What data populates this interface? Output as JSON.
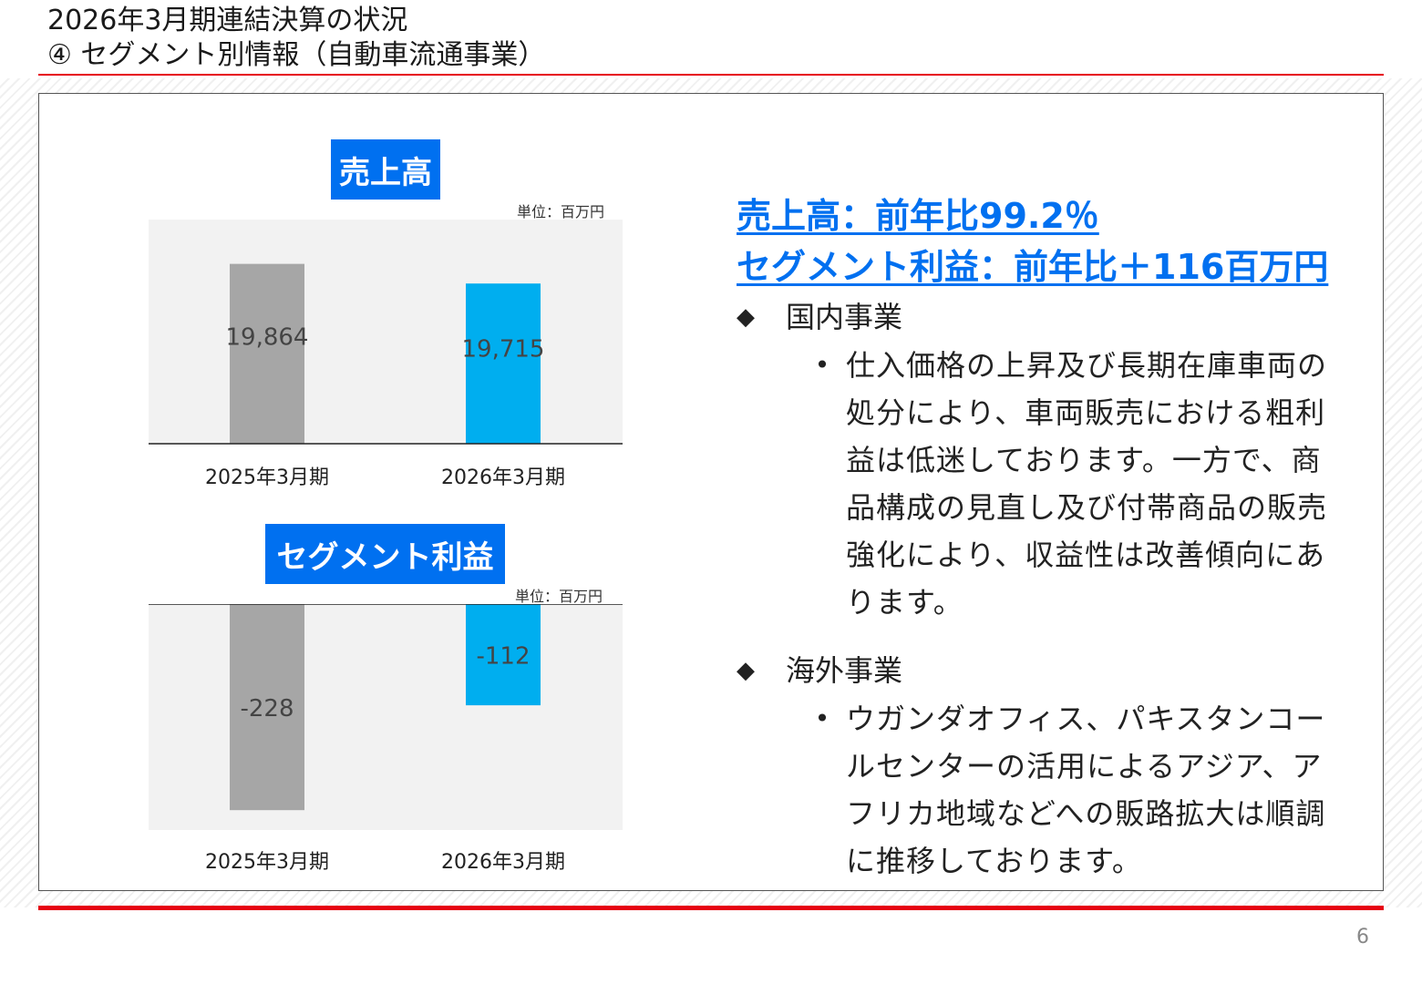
{
  "header": {
    "title": "2026年3月期連結決算の状況",
    "subtitle": "④ セグメント別情報（自動車流通事業）"
  },
  "tags": {
    "sales": "売上高",
    "profit": "セグメント利益"
  },
  "units": {
    "sales": "単位：百万円",
    "profit": "単位：百万円"
  },
  "chart_data": [
    {
      "type": "bar",
      "title": "売上高",
      "unit": "単位：百万円",
      "categories": [
        "2025年3月期",
        "2026年3月期"
      ],
      "values": [
        19864,
        19715
      ],
      "value_labels": [
        "19,864",
        "19,715"
      ],
      "colors": [
        "#a6a6a6",
        "#00aeef"
      ],
      "ylim": [
        18500,
        20200
      ],
      "grid": false
    },
    {
      "type": "bar",
      "title": "セグメント利益",
      "unit": "単位：百万円",
      "categories": [
        "2025年3月期",
        "2026年3月期"
      ],
      "values": [
        -228,
        -112
      ],
      "value_labels": [
        "-228",
        "-112"
      ],
      "colors": [
        "#a6a6a6",
        "#00aeef"
      ],
      "ylim": [
        -250,
        0
      ],
      "grid": false
    }
  ],
  "summary": {
    "headline_sales": "売上高：前年比99.2％",
    "headline_profit": "セグメント利益：前年比＋116百万円",
    "domestic": {
      "heading": "国内事業",
      "text": "仕入価格の上昇及び長期在庫車両の処分により、車両販売における粗利益は低迷しております。一方で、商品構成の見直し及び付帯商品の販売強化により、収益性は改善傾向にあります。"
    },
    "overseas": {
      "heading": "海外事業",
      "text": "ウガンダオフィス、パキスタンコールセンターの活用によるアジア、アフリカ地域などへの販路拡大は順調に推移しております。"
    },
    "diamond_glyph": "◆",
    "bullet_glyph": "•"
  },
  "footer": {
    "page_number": "6"
  },
  "colors": {
    "accent_red": "#e60012",
    "tag_blue": "#0070f0",
    "bar_gray": "#a6a6a6",
    "bar_blue": "#00aeef",
    "plot_bg": "#f2f2f2"
  }
}
